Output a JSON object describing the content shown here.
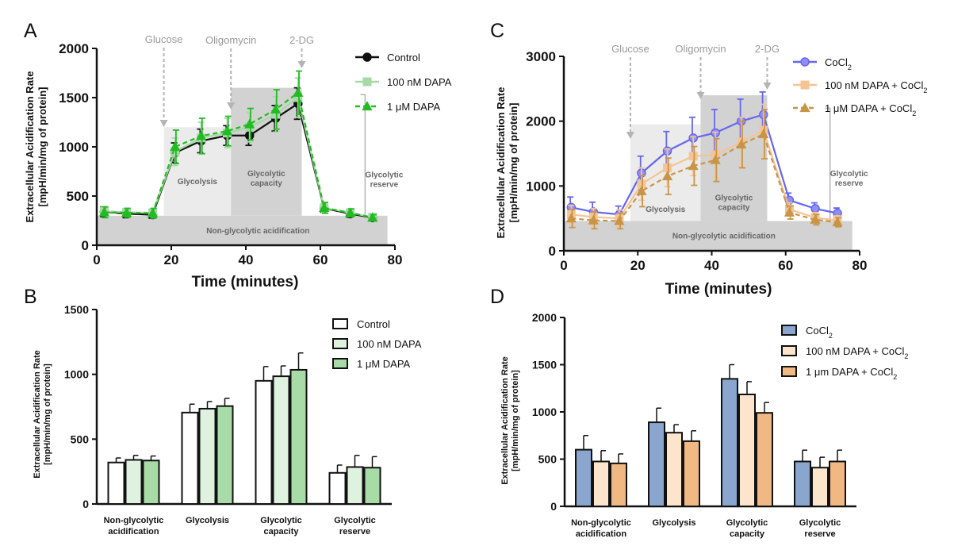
{
  "colors": {
    "control": "#111111",
    "dapa100": "#a6d9a6",
    "dapa1": "#22bb22",
    "cocl2": "#6666ee",
    "dapa100_cocl2": "#f5c494",
    "dapa1_cocl2": "#c89548",
    "bar_control": "#ffffff",
    "bar_dapa100": "#dff2df",
    "bar_dapa1": "#a8dba8",
    "bar_cocl2": "#8aa6cf",
    "bar_dapa100_cocl2": "#fce5cc",
    "bar_dapa1_cocl2": "#f0b883",
    "shade_light": "#ebebeb",
    "shade_dark": "#d2d2d2",
    "injection": "#b4b4b4"
  },
  "panels": {
    "A": {
      "letter": "A",
      "ylabel_line1": "Extracellular Acidification  Rate",
      "ylabel_line2": "[mpH/min/mg of protein]",
      "injections": [
        "Glucose",
        "Oligomycin",
        "2-DG"
      ],
      "phases": {
        "glycolysis": "Glycolysis",
        "capacity_1": "Glycolytic",
        "capacity_2": "capacity",
        "reserve_1": "Glycolytic",
        "reserve_2": "reserve",
        "nonglyco": "Non-glycolytic acidification"
      }
    },
    "B": {
      "letter": "B",
      "ylabel_line1": "Extracellular Acidification  Rate",
      "ylabel_line2": "[mpH/min/mg of protein]",
      "categories": [
        [
          "Non-glycolytic",
          "acidification"
        ],
        [
          "Glycolysis"
        ],
        [
          "Glycolytic",
          "capacity"
        ],
        [
          "Glycolytic",
          "reserve"
        ]
      ]
    },
    "C": {
      "letter": "C",
      "ylabel_line1": "Extracellular Acidification  Rate",
      "ylabel_line2": "[mpH/min/mg of protein]",
      "injections": [
        "Glucose",
        "Oligomycin",
        "2-DG"
      ],
      "phases": {
        "glycolysis": "Glycolysis",
        "capacity_1": "Glycolytic",
        "capacity_2": "capacity",
        "reserve_1": "Glycolytic",
        "reserve_2": "reserve",
        "nonglyco": "Non-glycolytic acidification"
      }
    },
    "D": {
      "letter": "D",
      "ylabel_line1": "Extracellular Acidification  Rate",
      "ylabel_line2": "[mpH/min/mg of protein]",
      "categories": [
        [
          "Non-glycolytic",
          "acidification"
        ],
        [
          "Glycolysis"
        ],
        [
          "Glycolytic",
          "capacity"
        ],
        [
          "Glycolytic",
          "reserve"
        ]
      ]
    }
  },
  "chart_data": [
    {
      "id": "A",
      "type": "line",
      "xlabel": "Time (minutes)",
      "ylabel": "Extracellular Acidification  Rate [mpH/min/mg of protein]",
      "xlim": [
        0,
        80
      ],
      "ylim": [
        0,
        2000
      ],
      "xticks": [
        0,
        20,
        40,
        60,
        80
      ],
      "yticks": [
        0,
        500,
        1000,
        1500,
        2000
      ],
      "legend_position": "top-right",
      "x": [
        2,
        8,
        15,
        21,
        28,
        35,
        41,
        48,
        54,
        61,
        68,
        74
      ],
      "series": [
        {
          "name": "Control",
          "values": [
            340,
            320,
            310,
            940,
            1060,
            1115,
            1115,
            1290,
            1440,
            375,
            320,
            280
          ],
          "errors": [
            50,
            40,
            35,
            100,
            120,
            100,
            100,
            130,
            160,
            40,
            35,
            25
          ],
          "marker": "circle",
          "dashed": false,
          "color_key": "control"
        },
        {
          "name": "100 nM DAPA",
          "values": [
            345,
            335,
            330,
            950,
            1090,
            1140,
            1200,
            1330,
            1500,
            380,
            330,
            285
          ],
          "errors": [
            45,
            40,
            40,
            140,
            160,
            150,
            150,
            180,
            200,
            50,
            35,
            30
          ],
          "marker": "square",
          "dashed": false,
          "color_key": "dapa100"
        },
        {
          "name": "1 μM DAPA",
          "values": [
            335,
            330,
            325,
            1000,
            1110,
            1160,
            1230,
            1380,
            1550,
            380,
            330,
            280
          ],
          "errors": [
            55,
            45,
            50,
            170,
            180,
            150,
            160,
            200,
            220,
            55,
            40,
            30
          ],
          "marker": "triangle",
          "dashed": true,
          "color_key": "dapa1"
        }
      ],
      "injection_times": [
        18,
        36,
        55
      ],
      "annotations": [
        "Glucose",
        "Oligomycin",
        "2-DG",
        "Glycolysis",
        "Glycolytic capacity",
        "Glycolytic reserve",
        "Non-glycolytic acidification"
      ]
    },
    {
      "id": "B",
      "type": "bar",
      "ylabel": "Extracellular Acidification  Rate [mpH/min/mg of protein]",
      "ylim": [
        0,
        1500
      ],
      "yticks": [
        0,
        500,
        1000,
        1500
      ],
      "legend_position": "top-right",
      "categories": [
        "Non-glycolytic acidification",
        "Glycolysis",
        "Glycolytic capacity",
        "Glycolytic reserve"
      ],
      "series": [
        {
          "name": "Control",
          "values": [
            320,
            705,
            950,
            240
          ],
          "errors": [
            35,
            65,
            110,
            60
          ],
          "color_key": "bar_control"
        },
        {
          "name": "100 nM DAPA",
          "values": [
            340,
            735,
            985,
            285
          ],
          "errors": [
            35,
            55,
            80,
            90
          ],
          "color_key": "bar_dapa100"
        },
        {
          "name": "1 μM DAPA",
          "values": [
            335,
            755,
            1035,
            280
          ],
          "errors": [
            35,
            60,
            130,
            85
          ],
          "color_key": "bar_dapa1"
        }
      ]
    },
    {
      "id": "C",
      "type": "line",
      "xlabel": "Time (minutes)",
      "ylabel": "Extracellular Acidification  Rate [mpH/min/mg of protein]",
      "xlim": [
        0,
        80
      ],
      "ylim": [
        0,
        3000
      ],
      "xticks": [
        0,
        20,
        40,
        60,
        80
      ],
      "yticks": [
        0,
        1000,
        2000,
        3000
      ],
      "legend_position": "top-right",
      "x": [
        2,
        8,
        15,
        21,
        28,
        35,
        41,
        48,
        54,
        61,
        68,
        74
      ],
      "series": [
        {
          "name": "CoCl",
          "sub": "2",
          "suffix": "",
          "values": [
            670,
            600,
            560,
            1200,
            1540,
            1740,
            1820,
            2000,
            2100,
            780,
            650,
            580
          ],
          "errors": [
            160,
            150,
            130,
            260,
            300,
            320,
            360,
            340,
            350,
            110,
            90,
            80
          ],
          "marker": "circle",
          "dashed": false,
          "color_key": "cocl2"
        },
        {
          "name": "100 nM DAPA + CoCl",
          "sub": "2",
          "suffix": "",
          "values": [
            560,
            520,
            500,
            1030,
            1280,
            1460,
            1480,
            1680,
            1860,
            640,
            510,
            470
          ],
          "errors": [
            140,
            130,
            130,
            250,
            290,
            300,
            350,
            380,
            400,
            100,
            80,
            70
          ],
          "marker": "square",
          "dashed": false,
          "color_key": "dapa100_cocl2"
        },
        {
          "name": "1 μM DAPA + CoCl",
          "sub": "2",
          "suffix": "",
          "values": [
            500,
            470,
            460,
            920,
            1150,
            1310,
            1400,
            1640,
            1800,
            590,
            480,
            440
          ],
          "errors": [
            140,
            130,
            120,
            240,
            280,
            300,
            330,
            360,
            380,
            100,
            80,
            70
          ],
          "marker": "triangle",
          "dashed": true,
          "color_key": "dapa1_cocl2"
        }
      ],
      "injection_times": [
        18,
        37,
        55
      ],
      "annotations": [
        "Glucose",
        "Oligomycin",
        "2-DG",
        "Glycolysis",
        "Glycolytic capacity",
        "Glycolytic reserve",
        "Non-glycolytic acidification"
      ]
    },
    {
      "id": "D",
      "type": "bar",
      "ylabel": "Extracellular Acidification  Rate [mpH/min/mg of protein]",
      "ylim": [
        0,
        2000
      ],
      "yticks": [
        0,
        500,
        1000,
        1500,
        2000
      ],
      "legend_position": "top-right",
      "categories": [
        "Non-glycolytic acidification",
        "Glycolysis",
        "Glycolytic capacity",
        "Glycolytic reserve"
      ],
      "series": [
        {
          "name": "CoCl",
          "sub": "2",
          "suffix": "",
          "values": [
            600,
            890,
            1350,
            475
          ],
          "errors": [
            150,
            150,
            150,
            120
          ],
          "color_key": "bar_cocl2"
        },
        {
          "name": "100 nM DAPA + CoCl",
          "sub": "2",
          "suffix": "",
          "values": [
            475,
            780,
            1185,
            410
          ],
          "errors": [
            115,
            85,
            135,
            110
          ],
          "color_key": "bar_dapa100_cocl2"
        },
        {
          "name": "1 μm DAPA + CoCl",
          "sub": "2",
          "suffix": "",
          "values": [
            455,
            690,
            990,
            475
          ],
          "errors": [
            100,
            110,
            110,
            120
          ],
          "color_key": "bar_dapa1_cocl2"
        }
      ]
    }
  ]
}
